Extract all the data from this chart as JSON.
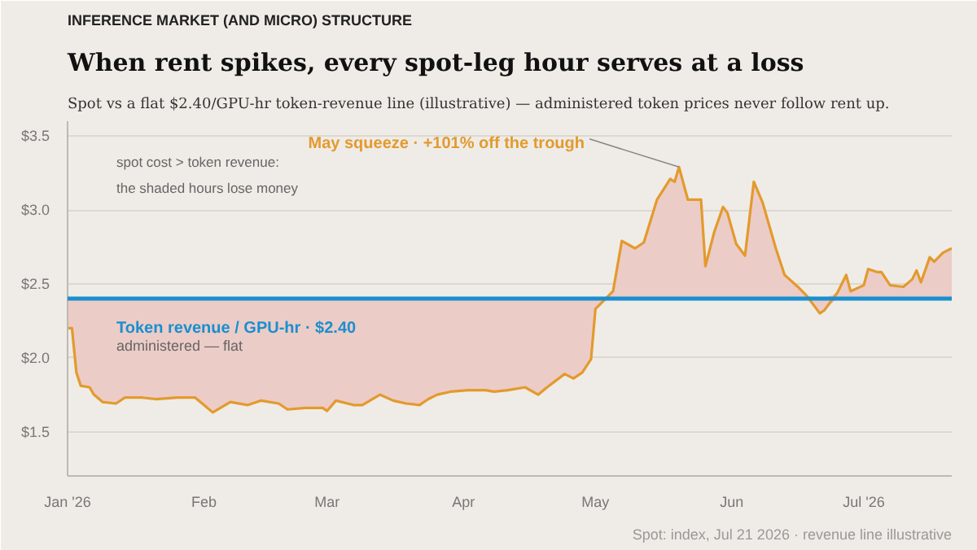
{
  "chart_data": {
    "type": "line",
    "title": "When rent spikes, every spot-leg hour serves at a loss",
    "subtitle": "Spot vs a flat $2.40/GPU-hr token-revenue line (illustrative) — administered token prices never follow rent up.",
    "x": [
      "2026-01-01",
      "2026-01-02",
      "2026-01-03",
      "2026-01-04",
      "2026-01-06",
      "2026-01-07",
      "2026-01-09",
      "2026-01-12",
      "2026-01-14",
      "2026-01-18",
      "2026-01-21",
      "2026-01-26",
      "2026-01-30",
      "2026-02-01",
      "2026-02-03",
      "2026-02-07",
      "2026-02-11",
      "2026-02-14",
      "2026-02-18",
      "2026-02-20",
      "2026-02-24",
      "2026-02-28",
      "2026-03-01",
      "2026-03-03",
      "2026-03-07",
      "2026-03-09",
      "2026-03-13",
      "2026-03-16",
      "2026-03-19",
      "2026-03-22",
      "2026-03-24",
      "2026-03-26",
      "2026-03-29",
      "2026-04-02",
      "2026-04-06",
      "2026-04-08",
      "2026-04-11",
      "2026-04-15",
      "2026-04-18",
      "2026-04-20",
      "2026-04-24",
      "2026-04-26",
      "2026-04-28",
      "2026-04-30",
      "2026-05-01",
      "2026-05-03",
      "2026-05-05",
      "2026-05-07",
      "2026-05-10",
      "2026-05-12",
      "2026-05-15",
      "2026-05-18",
      "2026-05-19",
      "2026-05-20",
      "2026-05-22",
      "2026-05-25",
      "2026-05-26",
      "2026-05-28",
      "2026-05-30",
      "2026-05-31",
      "2026-06-02",
      "2026-06-04",
      "2026-06-06",
      "2026-06-08",
      "2026-06-11",
      "2026-06-13",
      "2026-06-16",
      "2026-06-18",
      "2026-06-21",
      "2026-06-22",
      "2026-06-25",
      "2026-06-27",
      "2026-06-28",
      "2026-07-01",
      "2026-07-02",
      "2026-07-04",
      "2026-07-05",
      "2026-07-07",
      "2026-07-10",
      "2026-07-12",
      "2026-07-13",
      "2026-07-14",
      "2026-07-16",
      "2026-07-17",
      "2026-07-19",
      "2026-07-21"
    ],
    "series": [
      {
        "color": "#e39a2d",
        "values": [
          2.2,
          2.2,
          1.9,
          1.81,
          1.8,
          1.75,
          1.7,
          1.69,
          1.73,
          1.73,
          1.72,
          1.73,
          1.73,
          1.68,
          1.63,
          1.7,
          1.68,
          1.71,
          1.69,
          1.65,
          1.66,
          1.66,
          1.64,
          1.71,
          1.68,
          1.68,
          1.75,
          1.71,
          1.69,
          1.68,
          1.72,
          1.75,
          1.77,
          1.78,
          1.78,
          1.77,
          1.78,
          1.8,
          1.75,
          1.8,
          1.89,
          1.86,
          1.9,
          1.99,
          2.33,
          2.39,
          2.45,
          2.79,
          2.74,
          2.78,
          3.07,
          3.21,
          3.19,
          3.29,
          3.07,
          3.07,
          2.62,
          2.85,
          3.02,
          2.98,
          2.77,
          2.69,
          3.19,
          3.05,
          2.74,
          2.56,
          2.48,
          2.42,
          2.3,
          2.32,
          2.44,
          2.56,
          2.45,
          2.49,
          2.6,
          2.58,
          2.58,
          2.49,
          2.48,
          2.53,
          2.59,
          2.51,
          2.68,
          2.65,
          2.71,
          2.74
        ],
        "lower": [
          2.2,
          2.2,
          1.9,
          1.81,
          1.8,
          1.75,
          1.7,
          1.69,
          1.73,
          1.73,
          1.72,
          1.73,
          1.73,
          1.68,
          1.63,
          1.7,
          1.68,
          1.71,
          1.69,
          1.65,
          1.66,
          1.66,
          1.64,
          1.71,
          1.68,
          1.68,
          1.75,
          1.71,
          1.69,
          1.68,
          1.72,
          1.75,
          1.77,
          1.78,
          1.78,
          1.77,
          1.78,
          1.8,
          1.75,
          1.8,
          1.89,
          1.86,
          1.9,
          1.99,
          2.33,
          2.39,
          2.4,
          2.4,
          2.4,
          2.4,
          2.4,
          2.4,
          2.4,
          2.4,
          2.4,
          2.4,
          2.4,
          2.4,
          2.4,
          2.4,
          2.4,
          2.4,
          2.4,
          2.4,
          2.4,
          2.4,
          2.4,
          2.4,
          2.3,
          2.32,
          2.4,
          2.4,
          2.4,
          2.4,
          2.4,
          2.4,
          2.4,
          2.4,
          2.4,
          2.4,
          2.4,
          2.4,
          2.4,
          2.4,
          2.4,
          2.4
        ],
        "upper": [
          2.4,
          2.4,
          2.4,
          2.4,
          2.4,
          2.4,
          2.4,
          2.4,
          2.4,
          2.4,
          2.4,
          2.4,
          2.4,
          2.4,
          2.4,
          2.4,
          2.4,
          2.4,
          2.4,
          2.4,
          2.4,
          2.4,
          2.4,
          2.4,
          2.4,
          2.4,
          2.4,
          2.4,
          2.4,
          2.4,
          2.4,
          2.4,
          2.4,
          2.4,
          2.4,
          2.4,
          2.4,
          2.4,
          2.4,
          2.4,
          2.4,
          2.4,
          2.4,
          2.4,
          2.4,
          2.4,
          2.45,
          2.79,
          2.74,
          2.78,
          3.07,
          3.21,
          3.19,
          3.29,
          3.07,
          3.07,
          2.62,
          2.85,
          3.02,
          2.98,
          2.77,
          2.69,
          3.19,
          3.05,
          2.74,
          2.56,
          2.48,
          2.42,
          2.4,
          2.4,
          2.44,
          2.56,
          2.45,
          2.49,
          2.6,
          2.58,
          2.58,
          2.49,
          2.48,
          2.53,
          2.59,
          2.51,
          2.68,
          2.65,
          2.71,
          2.74
        ]
      }
    ],
    "xlim": [
      "2026-01-01",
      "2026-07-21"
    ],
    "xticks": [
      {
        "value": "2026-01-01",
        "label": "Jan '26"
      },
      {
        "value": "2026-02-01",
        "label": "Feb"
      },
      {
        "value": "2026-03-01",
        "label": "Mar"
      },
      {
        "value": "2026-04-01",
        "label": "Apr"
      },
      {
        "value": "2026-05-01",
        "label": "May"
      },
      {
        "value": "2026-06-01",
        "label": "Jun"
      },
      {
        "value": "2026-07-01",
        "label": "Jul '26"
      }
    ],
    "ylim": [
      1.2,
      3.6
    ],
    "yticks": [
      {
        "value": 1.5,
        "label": "$1.5"
      },
      {
        "value": 2.0,
        "label": "$2.0"
      },
      {
        "value": 2.5,
        "label": "$2.5"
      },
      {
        "value": 3.0,
        "label": "$3.0"
      },
      {
        "value": 3.5,
        "label": "$3.5"
      }
    ],
    "ref_lines": [
      {
        "axis": "y",
        "value": 2.4,
        "label": "Token revenue / GPU-hr · $2.40",
        "color": "#1a8fd0"
      }
    ],
    "annotations": [
      "INFERENCE MARKET (AND MICRO) STRUCTURE",
      {
        "text": "May squeeze · +101% off the trough",
        "x": "2026-05-20",
        "y": 3.29
      },
      "spot cost > token revenue:",
      "the shaded hours lose money",
      "administered — flat",
      "Spot: index, Jul 21 2026 · revenue line illustrative"
    ],
    "grid": "y",
    "marker": "none",
    "line_style": "solid"
  }
}
